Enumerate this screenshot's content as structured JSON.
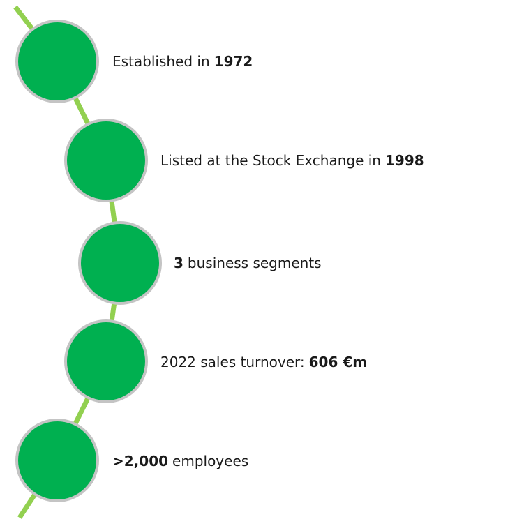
{
  "items": [
    {
      "parts": [
        {
          "text": "Established in",
          "bold": false
        },
        {
          "text": "1972",
          "bold": true
        }
      ]
    },
    {
      "parts": [
        {
          "text": "Listed at the Stock Exchange in",
          "bold": false
        },
        {
          "text": "1998",
          "bold": true
        }
      ]
    },
    {
      "parts": [
        {
          "text": "3",
          "bold": true
        },
        {
          "text": "business segments",
          "bold": false
        }
      ]
    },
    {
      "parts": [
        {
          "text": "2022 sales turnover:",
          "bold": false
        },
        {
          "text": "606 €m",
          "bold": true
        }
      ]
    },
    {
      "parts": [
        {
          "text": ">2,000",
          "bold": true
        },
        {
          "text": "employees",
          "bold": false
        }
      ]
    }
  ]
}
